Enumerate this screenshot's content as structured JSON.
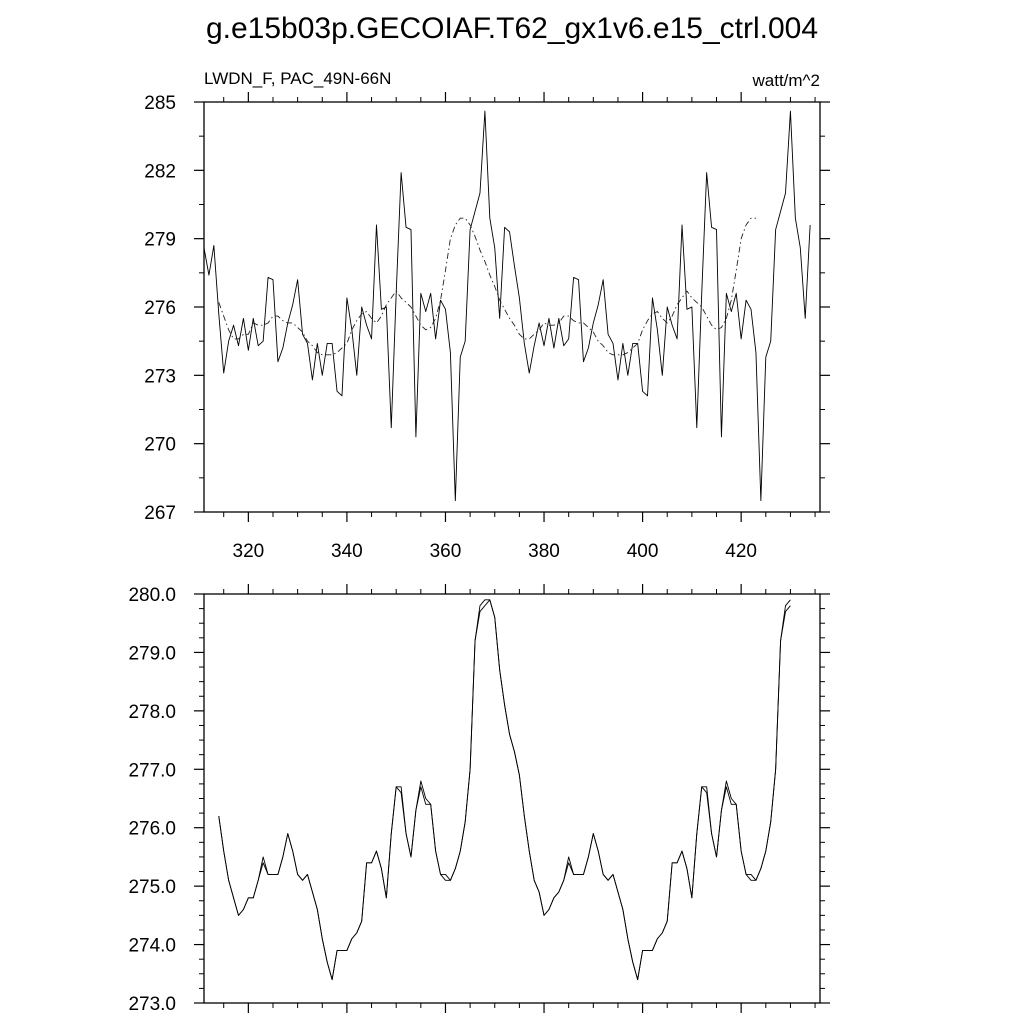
{
  "page": {
    "title": "g.e15b03p.GECOIAF.T62_gx1v6.e15_ctrl.004"
  },
  "chart_data": [
    {
      "type": "line",
      "subtitle_left": "LWDN_F, PAC_49N-66N",
      "subtitle_right": "watt/m^2",
      "xlim": [
        311,
        436
      ],
      "ylim": [
        267,
        285
      ],
      "x_ticks": [
        320,
        340,
        360,
        380,
        400,
        420
      ],
      "y_ticks": [
        267,
        270,
        273,
        276,
        279,
        282,
        285
      ],
      "y_tick_labels": [
        "267",
        "270",
        "273",
        "276",
        "279",
        "282",
        "285"
      ],
      "series": [
        {
          "style": "solid",
          "x_start": 311,
          "x_step": 1,
          "values": [
            278.6,
            277.4,
            278.7,
            275.7,
            273.1,
            274.5,
            275.2,
            274.3,
            275.5,
            274.1,
            275.5,
            274.3,
            274.5,
            277.3,
            277.2,
            273.6,
            274.2,
            275.3,
            276.1,
            277.2,
            274.8,
            274.4,
            272.8,
            274.4,
            273.0,
            274.4,
            274.4,
            272.3,
            272.1,
            276.4,
            275.0,
            273.0,
            276.0,
            275.2,
            274.6,
            279.6,
            275.9,
            276.0,
            270.7,
            276.6,
            281.9,
            279.5,
            279.4,
            270.3,
            276.6,
            275.8,
            276.6,
            274.6,
            276.3,
            275.9,
            274.0,
            267.5,
            273.8,
            274.5,
            279.4,
            280.2,
            281.0,
            284.6,
            279.9,
            278.6,
            275.5,
            279.5,
            279.3,
            277.8,
            276.4,
            274.4,
            273.1,
            274.3,
            275.3,
            274.3,
            275.5,
            274.2,
            275.5,
            274.3,
            274.6,
            277.3,
            277.2,
            273.6,
            274.2,
            275.3,
            276.1,
            277.2,
            274.8,
            274.4,
            272.8,
            274.4,
            273.0,
            274.4,
            274.4,
            272.3,
            272.1,
            276.4,
            275.0,
            273.0,
            276.0,
            275.2,
            274.6,
            279.6,
            275.9,
            276.0,
            270.7,
            276.6,
            281.9,
            279.5,
            279.4,
            270.3,
            276.6,
            275.8,
            276.6,
            274.6,
            276.3,
            275.9,
            274.0,
            267.5,
            273.8,
            274.5,
            279.4,
            280.2,
            281.0,
            284.6,
            279.9,
            278.6,
            275.5,
            279.6
          ]
        },
        {
          "style": "dashed",
          "x_start": 314,
          "x_step": 1,
          "values": [
            276.2,
            275.6,
            275.0,
            274.6,
            274.6,
            274.8,
            274.8,
            275.3,
            275.2,
            275.2,
            275.3,
            275.6,
            275.6,
            275.4,
            275.3,
            275.3,
            275.1,
            274.9,
            274.5,
            274.3,
            274.0,
            273.9,
            273.9,
            273.9,
            274.0,
            274.2,
            274.4,
            275.0,
            275.4,
            275.7,
            275.8,
            275.5,
            275.3,
            275.6,
            276.1,
            276.4,
            276.7,
            276.4,
            276.2,
            276.0,
            275.6,
            275.2,
            275.0,
            275.1,
            275.5,
            276.3,
            277.6,
            279.0,
            279.6,
            279.9,
            279.9,
            279.6,
            279.1,
            278.5,
            278.0,
            277.4,
            276.9,
            276.3,
            275.9,
            275.5,
            275.2,
            274.8,
            274.6,
            274.6,
            274.8,
            275.0,
            275.3,
            275.2,
            275.2,
            275.3,
            275.6,
            275.6,
            275.4,
            275.3,
            275.3,
            275.1,
            274.9,
            274.5,
            274.3,
            274.0,
            273.9,
            273.9,
            273.9,
            274.0,
            274.2,
            274.4,
            275.0,
            275.4,
            275.7,
            275.8,
            275.5,
            275.3,
            275.6,
            276.1,
            276.4,
            276.7,
            276.4,
            276.2,
            276.0,
            275.6,
            275.2,
            275.0,
            275.1,
            275.5,
            276.3,
            277.6,
            279.0,
            279.6,
            279.9,
            279.9
          ]
        }
      ]
    },
    {
      "type": "line",
      "xlim": [
        311,
        436
      ],
      "ylim": [
        273.0,
        280.0
      ],
      "x_ticks": [
        320,
        340,
        360,
        380,
        400,
        420
      ],
      "y_ticks": [
        273.0,
        274.0,
        275.0,
        276.0,
        277.0,
        278.0,
        279.0,
        280.0
      ],
      "y_tick_labels": [
        "273.0",
        "274.0",
        "275.0",
        "276.0",
        "277.0",
        "278.0",
        "279.0",
        "280.0"
      ],
      "series": [
        {
          "style": "solid",
          "x_start": 314,
          "x_step": 1,
          "values": [
            276.2,
            275.6,
            275.1,
            274.8,
            274.5,
            274.6,
            274.8,
            274.8,
            275.1,
            275.5,
            275.2,
            275.2,
            275.2,
            275.5,
            275.9,
            275.6,
            275.2,
            275.1,
            275.2,
            274.9,
            274.6,
            274.1,
            273.7,
            273.4,
            273.9,
            273.9,
            273.9,
            274.1,
            274.2,
            274.4,
            275.4,
            275.4,
            275.6,
            275.3,
            274.8,
            275.9,
            276.7,
            276.7,
            275.9,
            275.5,
            276.3,
            276.8,
            276.5,
            276.4,
            275.6,
            275.2,
            275.2,
            275.1,
            275.3,
            275.6,
            276.1,
            277.0,
            279.2,
            279.8,
            279.9,
            279.9,
            279.6,
            278.7,
            278.1,
            277.6,
            277.3,
            276.9,
            276.2,
            275.6,
            275.1,
            274.9,
            274.5,
            274.6,
            274.8,
            274.9,
            275.1,
            275.5,
            275.2,
            275.2,
            275.2,
            275.5,
            275.9,
            275.6,
            275.2,
            275.1,
            275.2,
            274.9,
            274.6,
            274.1,
            273.7,
            273.4,
            273.9,
            273.9,
            273.9,
            274.1,
            274.2,
            274.4,
            275.4,
            275.4,
            275.6,
            275.3,
            274.8,
            275.9,
            276.7,
            276.7,
            275.9,
            275.5,
            276.3,
            276.8,
            276.5,
            276.4,
            275.6,
            275.2,
            275.2,
            275.1,
            275.3,
            275.6,
            276.1,
            277.0,
            279.2,
            279.8,
            279.9
          ]
        },
        {
          "style": "solid",
          "x_start": 314,
          "x_step": 1,
          "values": [
            276.2,
            275.6,
            275.1,
            274.8,
            274.5,
            274.6,
            274.8,
            274.8,
            275.1,
            275.4,
            275.2,
            275.2,
            275.2,
            275.5,
            275.9,
            275.6,
            275.2,
            275.1,
            275.2,
            274.9,
            274.6,
            274.1,
            273.7,
            273.4,
            273.9,
            273.9,
            273.9,
            274.1,
            274.2,
            274.4,
            275.4,
            275.4,
            275.6,
            275.3,
            274.8,
            275.9,
            276.7,
            276.6,
            275.9,
            275.5,
            276.3,
            276.7,
            276.4,
            276.4,
            275.6,
            275.2,
            275.1,
            275.1,
            275.3,
            275.6,
            276.1,
            277.0,
            279.2,
            279.7,
            279.8,
            279.9,
            279.6,
            278.7,
            278.1,
            277.6,
            277.3,
            276.9,
            276.2,
            275.6,
            275.1,
            274.9,
            274.5,
            274.6,
            274.8,
            274.9,
            275.1,
            275.4,
            275.2,
            275.2,
            275.2,
            275.5,
            275.9,
            275.6,
            275.2,
            275.1,
            275.2,
            274.9,
            274.6,
            274.1,
            273.7,
            273.4,
            273.9,
            273.9,
            273.9,
            274.1,
            274.2,
            274.4,
            275.4,
            275.4,
            275.6,
            275.3,
            274.8,
            275.9,
            276.7,
            276.6,
            275.9,
            275.5,
            276.3,
            276.7,
            276.4,
            276.4,
            275.6,
            275.2,
            275.1,
            275.1,
            275.3,
            275.6,
            276.1,
            277.0,
            279.2,
            279.7,
            279.8
          ]
        }
      ]
    }
  ]
}
